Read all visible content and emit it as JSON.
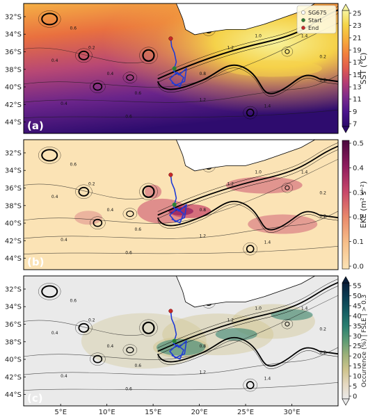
{
  "panels": [
    {
      "id": "a",
      "label": "(a)",
      "variable": "SST",
      "colorbar_title": "SST (°C)",
      "colorbar_ticks": [
        "25",
        "23",
        "21",
        "19",
        "17",
        "15",
        "13",
        "11",
        "9",
        "7"
      ],
      "palette": [
        "#2b0a6b",
        "#4a148c",
        "#7b2a8c",
        "#b33b74",
        "#e05a4f",
        "#f2803c",
        "#f7ad3c",
        "#f5d547",
        "#f7f5a1"
      ]
    },
    {
      "id": "b",
      "label": "(b)",
      "variable": "EKE",
      "colorbar_title": "EKE (m² s⁻²)",
      "colorbar_ticks": [
        "0.5",
        "0.4",
        "0.3",
        "0.2",
        "0.1",
        "0.0"
      ],
      "palette": [
        "#fbe3b5",
        "#f7c08a",
        "#e98a6b",
        "#c8486a",
        "#8f1c5e",
        "#4a0a3e"
      ]
    },
    {
      "id": "c",
      "label": "(c)",
      "variable": "FSLE",
      "colorbar_title": "Occurrence (%) | FSLE | > 0.3",
      "colorbar_ticks": [
        "55",
        "50",
        "45",
        "40",
        "35",
        "30",
        "25",
        "20",
        "15",
        "10",
        "5",
        "0"
      ],
      "palette": [
        "#eaeaea",
        "#e6d9c2",
        "#cfc48d",
        "#9fb27a",
        "#5e9c74",
        "#2a7f70",
        "#155e63",
        "#0b3d52",
        "#0a1e3a"
      ]
    }
  ],
  "lat_ticks": [
    "32°S",
    "34°S",
    "36°S",
    "38°S",
    "40°S",
    "42°S",
    "44°S"
  ],
  "lon_ticks": [
    "5°E",
    "10°E",
    "15°E",
    "20°E",
    "25°E",
    "30°E"
  ],
  "legend": {
    "items": [
      {
        "label": "SG675",
        "color": "#ffffff"
      },
      {
        "label": "Start",
        "color": "#2e7d32"
      },
      {
        "label": "End",
        "color": "#c62828"
      }
    ]
  },
  "contour_labels": [
    "0.6",
    "0.4",
    "0.2",
    "0.4",
    "0.6",
    "0.8",
    "1.0",
    "1.2",
    "1.4",
    "0.2",
    "0.4",
    "0.6",
    "1.2",
    "1.4",
    "0.2"
  ],
  "colors": {
    "land": "#ffffff",
    "track": "#1f3bd6",
    "contour": "#1a1a1a"
  }
}
